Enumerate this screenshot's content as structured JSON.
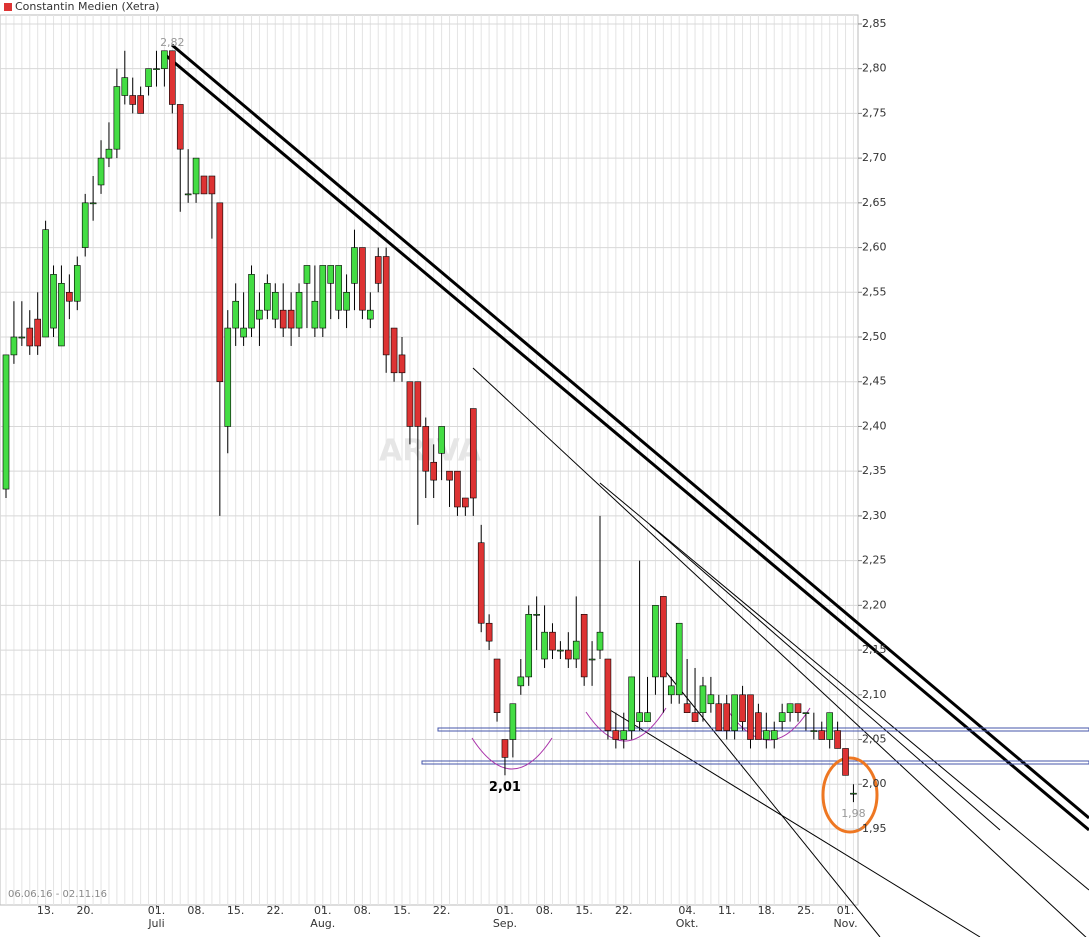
{
  "chart_data": {
    "type": "candlestick",
    "title": "Constantin Medien (Xetra)",
    "date_range": "06.06.16 - 02.11.16",
    "watermark": "ARIVA",
    "ylim": [
      1.865,
      2.86
    ],
    "yticks": [
      {
        "value": 1.95,
        "label": "1,95"
      },
      {
        "value": 2.0,
        "label": "2,00"
      },
      {
        "value": 2.05,
        "label": "2,05"
      },
      {
        "value": 2.1,
        "label": "2,10"
      },
      {
        "value": 2.15,
        "label": "2,15"
      },
      {
        "value": 2.2,
        "label": "2,20"
      },
      {
        "value": 2.25,
        "label": "2,25"
      },
      {
        "value": 2.3,
        "label": "2,30"
      },
      {
        "value": 2.35,
        "label": "2,35"
      },
      {
        "value": 2.4,
        "label": "2,40"
      },
      {
        "value": 2.45,
        "label": "2,45"
      },
      {
        "value": 2.5,
        "label": "2,50"
      },
      {
        "value": 2.55,
        "label": "2,55"
      },
      {
        "value": 2.6,
        "label": "2,60"
      },
      {
        "value": 2.65,
        "label": "2,65"
      },
      {
        "value": 2.7,
        "label": "2,70"
      },
      {
        "value": 2.75,
        "label": "2,75"
      },
      {
        "value": 2.8,
        "label": "2,80"
      },
      {
        "value": 2.85,
        "label": "2,85"
      }
    ],
    "xlim": [
      -0.5,
      107.5
    ],
    "xticks": [
      {
        "value": 5,
        "label": "13."
      },
      {
        "value": 10,
        "label": "20."
      },
      {
        "value": 19,
        "label": "01."
      },
      {
        "value": 24,
        "label": "08."
      },
      {
        "value": 29,
        "label": "15."
      },
      {
        "value": 34,
        "label": "22."
      },
      {
        "value": 40,
        "label": "01."
      },
      {
        "value": 45,
        "label": "08."
      },
      {
        "value": 50,
        "label": "15."
      },
      {
        "value": 55,
        "label": "22."
      },
      {
        "value": 63,
        "label": "01."
      },
      {
        "value": 68,
        "label": "08."
      },
      {
        "value": 73,
        "label": "15."
      },
      {
        "value": 78,
        "label": "22."
      },
      {
        "value": 86,
        "label": "04."
      },
      {
        "value": 91,
        "label": "11."
      },
      {
        "value": 96,
        "label": "18."
      },
      {
        "value": 101,
        "label": "25."
      },
      {
        "value": 106,
        "label": "01."
      }
    ],
    "month_ticks": [
      {
        "value": 19,
        "label": "Juli"
      },
      {
        "value": 40,
        "label": "Aug."
      },
      {
        "value": 63,
        "label": "Sep."
      },
      {
        "value": 86,
        "label": "Okt."
      },
      {
        "value": 106,
        "label": "Nov."
      }
    ],
    "up_color": "#44dd44",
    "down_color": "#dd3333",
    "grid": true,
    "annotations": [
      {
        "text": "2,82",
        "x": 21,
        "y": 2.82
      },
      {
        "text": "2,01",
        "x": 63,
        "y": 2.01
      },
      {
        "text": "1,98",
        "x": 107,
        "y": 1.98
      }
    ],
    "open": [
      2.33,
      2.48,
      2.5,
      2.51,
      2.52,
      2.5,
      2.51,
      2.49,
      2.55,
      2.54,
      2.6,
      2.65,
      2.67,
      2.7,
      2.71,
      2.77,
      2.77,
      2.77,
      2.78,
      2.8,
      2.8,
      2.82,
      2.76,
      2.66,
      2.66,
      2.68,
      2.68,
      2.65,
      2.4,
      2.51,
      2.5,
      2.51,
      2.52,
      2.53,
      2.52,
      2.53,
      2.53,
      2.51,
      2.56,
      2.51,
      2.51,
      2.56,
      2.53,
      2.53,
      2.56,
      2.6,
      2.52,
      2.59,
      2.59,
      2.51,
      2.48,
      2.45,
      2.45,
      2.4,
      2.36,
      2.37,
      2.35,
      2.35,
      2.32,
      2.42,
      2.27,
      2.18,
      2.14,
      2.05,
      2.05,
      2.11,
      2.12,
      2.19,
      2.14,
      2.17,
      2.15,
      2.15,
      2.14,
      2.19,
      2.14,
      2.15,
      2.14,
      2.06,
      2.05,
      2.06,
      2.07,
      2.07,
      2.12,
      2.21,
      2.1,
      2.1,
      2.09,
      2.08,
      2.08,
      2.09,
      2.09,
      2.09,
      2.06,
      2.1,
      2.1,
      2.08,
      2.05,
      2.05,
      2.07,
      2.08,
      2.09,
      2.08,
      2.06,
      2.06,
      2.05,
      2.06,
      2.04,
      1.99
    ],
    "high": [
      2.48,
      2.54,
      2.54,
      2.53,
      2.55,
      2.63,
      2.58,
      2.58,
      2.57,
      2.59,
      2.66,
      2.68,
      2.72,
      2.74,
      2.8,
      2.82,
      2.79,
      2.78,
      2.8,
      2.82,
      2.82,
      2.82,
      2.76,
      2.71,
      2.7,
      2.68,
      2.68,
      2.65,
      2.53,
      2.56,
      2.55,
      2.58,
      2.55,
      2.57,
      2.56,
      2.56,
      2.55,
      2.56,
      2.58,
      2.58,
      2.58,
      2.58,
      2.58,
      2.57,
      2.62,
      2.6,
      2.55,
      2.6,
      2.6,
      2.51,
      2.5,
      2.45,
      2.45,
      2.41,
      2.38,
      2.4,
      2.35,
      2.35,
      2.32,
      2.42,
      2.29,
      2.19,
      2.14,
      2.05,
      2.09,
      2.14,
      2.2,
      2.21,
      2.2,
      2.18,
      2.16,
      2.17,
      2.21,
      2.19,
      2.16,
      2.3,
      2.14,
      2.08,
      2.08,
      2.12,
      2.25,
      2.12,
      2.2,
      2.21,
      2.12,
      2.18,
      2.14,
      2.13,
      2.12,
      2.12,
      2.1,
      2.1,
      2.1,
      2.11,
      2.1,
      2.09,
      2.08,
      2.07,
      2.09,
      2.09,
      2.09,
      2.08,
      2.08,
      2.07,
      2.08,
      2.07,
      2.04,
      2.0
    ],
    "low": [
      2.32,
      2.47,
      2.49,
      2.48,
      2.48,
      2.5,
      2.5,
      2.49,
      2.52,
      2.53,
      2.59,
      2.63,
      2.66,
      2.69,
      2.7,
      2.76,
      2.75,
      2.75,
      2.77,
      2.78,
      2.78,
      2.75,
      2.64,
      2.65,
      2.65,
      2.66,
      2.61,
      2.3,
      2.37,
      2.49,
      2.49,
      2.5,
      2.49,
      2.52,
      2.51,
      2.5,
      2.49,
      2.5,
      2.51,
      2.5,
      2.5,
      2.52,
      2.52,
      2.51,
      2.53,
      2.52,
      2.51,
      2.55,
      2.46,
      2.45,
      2.45,
      2.38,
      2.29,
      2.32,
      2.32,
      2.34,
      2.31,
      2.3,
      2.3,
      2.3,
      2.17,
      2.15,
      2.07,
      2.01,
      2.03,
      2.1,
      2.11,
      2.15,
      2.13,
      2.14,
      2.14,
      2.13,
      2.13,
      2.11,
      2.11,
      2.14,
      2.05,
      2.04,
      2.04,
      2.05,
      2.06,
      2.07,
      2.1,
      2.08,
      2.09,
      2.09,
      2.08,
      2.07,
      2.07,
      2.08,
      2.06,
      2.05,
      2.05,
      2.06,
      2.04,
      2.05,
      2.04,
      2.04,
      2.06,
      2.07,
      2.07,
      2.06,
      2.05,
      2.05,
      2.04,
      2.04,
      2.01,
      1.98
    ],
    "close": [
      2.48,
      2.5,
      2.5,
      2.49,
      2.49,
      2.62,
      2.57,
      2.56,
      2.54,
      2.58,
      2.65,
      2.65,
      2.7,
      2.71,
      2.78,
      2.79,
      2.76,
      2.75,
      2.8,
      2.8,
      2.82,
      2.76,
      2.71,
      2.66,
      2.7,
      2.66,
      2.66,
      2.45,
      2.51,
      2.54,
      2.51,
      2.57,
      2.53,
      2.56,
      2.55,
      2.51,
      2.51,
      2.55,
      2.58,
      2.54,
      2.58,
      2.58,
      2.58,
      2.55,
      2.6,
      2.53,
      2.53,
      2.56,
      2.48,
      2.46,
      2.46,
      2.4,
      2.4,
      2.35,
      2.34,
      2.4,
      2.34,
      2.31,
      2.31,
      2.32,
      2.18,
      2.16,
      2.08,
      2.03,
      2.09,
      2.12,
      2.19,
      2.19,
      2.17,
      2.15,
      2.15,
      2.14,
      2.16,
      2.12,
      2.14,
      2.17,
      2.06,
      2.05,
      2.06,
      2.12,
      2.08,
      2.08,
      2.2,
      2.12,
      2.11,
      2.18,
      2.08,
      2.07,
      2.11,
      2.1,
      2.06,
      2.06,
      2.1,
      2.07,
      2.05,
      2.05,
      2.06,
      2.06,
      2.08,
      2.09,
      2.08,
      2.08,
      2.06,
      2.05,
      2.08,
      2.04,
      2.01,
      1.99
    ]
  }
}
